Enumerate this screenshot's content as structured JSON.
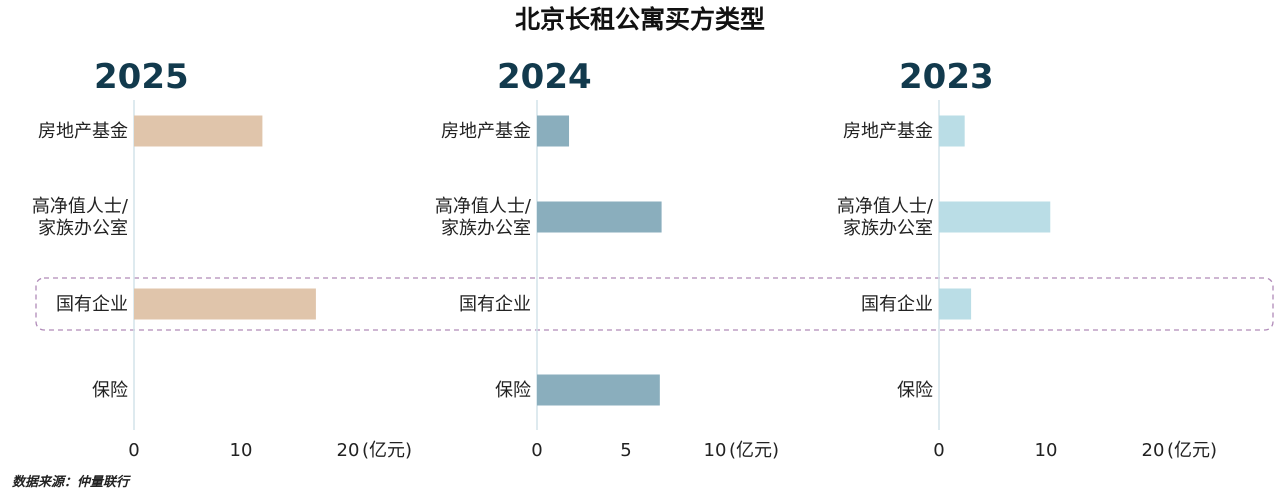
{
  "title": "北京长租公寓买方类型",
  "source": "数据来源：仲量联行",
  "highlight_category": "国有企业",
  "chart_data": [
    {
      "type": "bar",
      "orientation": "horizontal",
      "year": "2025",
      "color": "#e0c5ab",
      "categories": [
        [
          "房地产基金"
        ],
        [
          "高净值人士/",
          "家族办公室"
        ],
        [
          "国有企业"
        ],
        [
          "保险"
        ]
      ],
      "values": [
        12,
        0,
        17,
        0
      ],
      "xlim": [
        0,
        20
      ],
      "ticks": [
        0,
        10,
        20
      ],
      "unit": "(亿元)"
    },
    {
      "type": "bar",
      "orientation": "horizontal",
      "year": "2024",
      "color": "#8aaebd",
      "categories": [
        [
          "房地产基金"
        ],
        [
          "高净值人士/",
          "家族办公室"
        ],
        [
          "国有企业"
        ],
        [
          "保险"
        ]
      ],
      "values": [
        1.8,
        7,
        0,
        6.9
      ],
      "xlim": [
        0,
        10
      ],
      "ticks": [
        0,
        5,
        10
      ],
      "unit": "(亿元)"
    },
    {
      "type": "bar",
      "orientation": "horizontal",
      "year": "2023",
      "color": "#badde6",
      "categories": [
        [
          "房地产基金"
        ],
        [
          "高净值人士/",
          "家族办公室"
        ],
        [
          "国有企业"
        ],
        [
          "保险"
        ]
      ],
      "values": [
        2.4,
        10.4,
        3,
        0
      ],
      "xlim": [
        0,
        20
      ],
      "ticks": [
        0,
        10,
        20
      ],
      "unit": "(亿元)"
    }
  ]
}
